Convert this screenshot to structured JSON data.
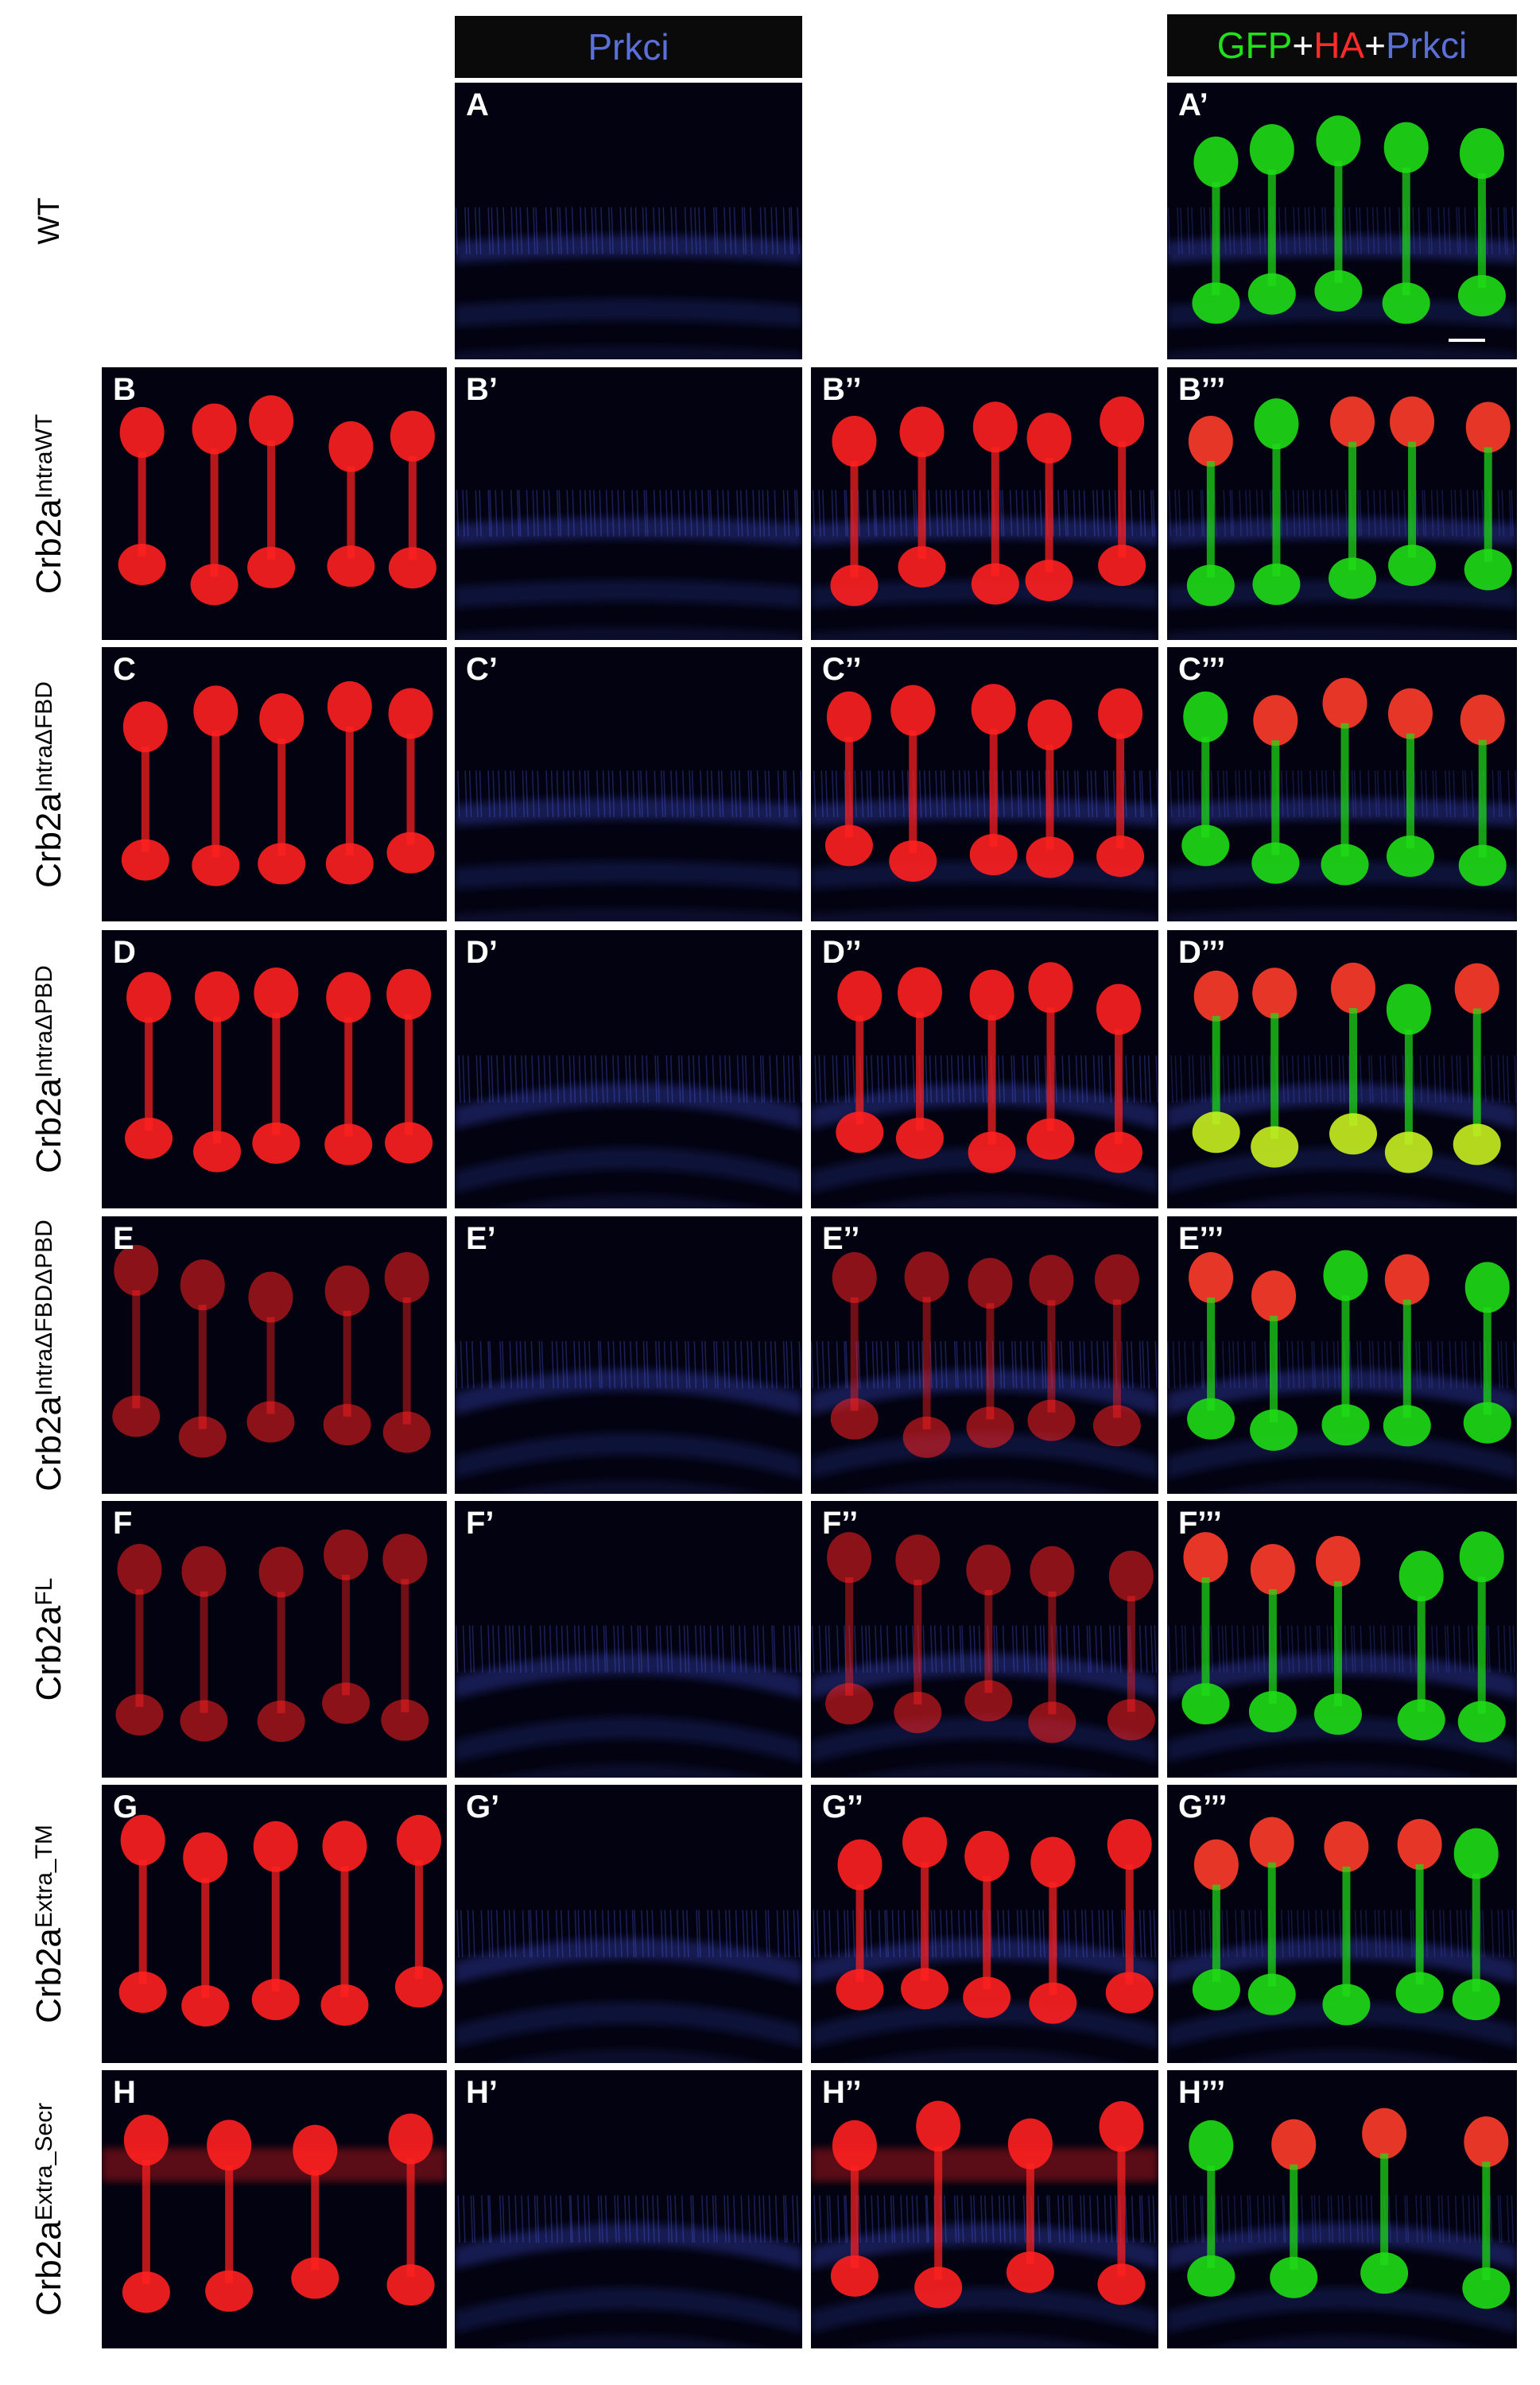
{
  "headers": {
    "prkci": "Prkci",
    "merge": {
      "gfp": "GFP",
      "plus1": "+",
      "ha": "HA",
      "plus2": "+",
      "prkci": "Prkci"
    }
  },
  "rows": [
    {
      "row_label": "WT",
      "genotype": "",
      "superscript": "",
      "panels": [
        "",
        "A",
        "",
        "A’"
      ]
    },
    {
      "row_label": "",
      "genotype": "Crb2a",
      "superscript": "IntraWT",
      "panels": [
        "B",
        "B’",
        "B’’",
        "B’’’"
      ]
    },
    {
      "row_label": "",
      "genotype": "Crb2a",
      "superscript": "IntraΔFBD",
      "panels": [
        "C",
        "C’",
        "C’’",
        "C’’’"
      ]
    },
    {
      "row_label": "",
      "genotype": "Crb2a",
      "superscript": "IntraΔPBD",
      "panels": [
        "D",
        "D’",
        "D’’",
        "D’’’"
      ]
    },
    {
      "row_label": "",
      "genotype": "Crb2a",
      "superscript": "IntraΔFBDΔPBD",
      "panels": [
        "E",
        "E’",
        "E’’",
        "E’’’"
      ]
    },
    {
      "row_label": "",
      "genotype": "Crb2a",
      "superscript": "FL",
      "panels": [
        "F",
        "F’",
        "F’’",
        "F’’’"
      ]
    },
    {
      "row_label": "",
      "genotype": "Crb2a",
      "superscript": "Extra_TM",
      "panels": [
        "G",
        "G’",
        "G’’",
        "G’’’"
      ]
    },
    {
      "row_label": "",
      "genotype": "Crb2a",
      "superscript": "Extra_Secr",
      "panels": [
        "H",
        "H’",
        "H’’",
        "H’’’"
      ]
    }
  ],
  "colors": {
    "gfp": "#22e11a",
    "ha": "#ff2a2a",
    "prkci": "#5b6fd8",
    "background": "#020210"
  }
}
